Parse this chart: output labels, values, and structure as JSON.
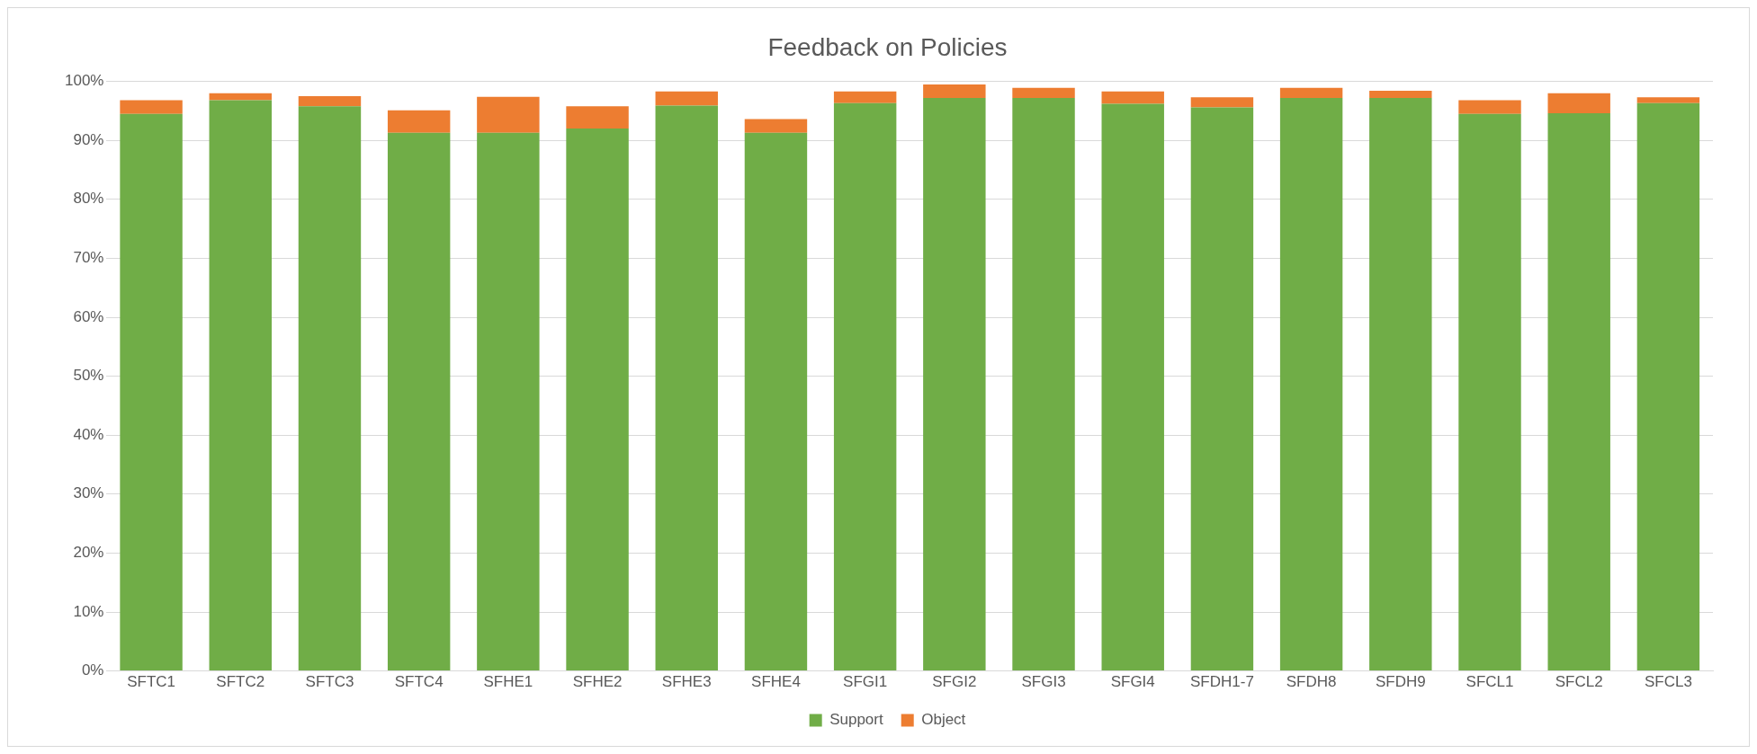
{
  "chart_data": {
    "type": "bar",
    "title": "Feedback on Policies",
    "stacked": true,
    "categories": [
      "SFTC1",
      "SFTC2",
      "SFTC3",
      "SFTC4",
      "SFHE1",
      "SFHE2",
      "SFHE3",
      "SFHE4",
      "SFGI1",
      "SFGI2",
      "SFGI3",
      "SFGI4",
      "SFDH1-7",
      "SFDH8",
      "SFDH9",
      "SFCL1",
      "SFCL2",
      "SFCL3"
    ],
    "series": [
      {
        "name": "Support",
        "color": "#70ad47",
        "values": [
          94.5,
          96.8,
          95.8,
          91.3,
          91.3,
          92.0,
          95.9,
          91.3,
          96.3,
          97.2,
          97.2,
          96.2,
          95.6,
          97.2,
          97.2,
          94.5,
          94.6,
          96.3
        ]
      },
      {
        "name": "Object",
        "color": "#ed7d31",
        "values": [
          2.3,
          1.2,
          1.7,
          3.8,
          6.1,
          3.8,
          2.4,
          2.3,
          2.0,
          2.3,
          1.7,
          2.1,
          1.7,
          1.7,
          1.2,
          2.3,
          3.4,
          1.0
        ]
      }
    ],
    "ylim": [
      0,
      100
    ],
    "yticks": [
      {
        "value": 0,
        "label": "0%"
      },
      {
        "value": 10,
        "label": "10%"
      },
      {
        "value": 20,
        "label": "20%"
      },
      {
        "value": 30,
        "label": "30%"
      },
      {
        "value": 40,
        "label": "40%"
      },
      {
        "value": 50,
        "label": "50%"
      },
      {
        "value": 60,
        "label": "60%"
      },
      {
        "value": 70,
        "label": "70%"
      },
      {
        "value": 80,
        "label": "80%"
      },
      {
        "value": 90,
        "label": "90%"
      },
      {
        "value": 100,
        "label": "100%"
      }
    ],
    "grid": "y",
    "legend": "bottom"
  }
}
